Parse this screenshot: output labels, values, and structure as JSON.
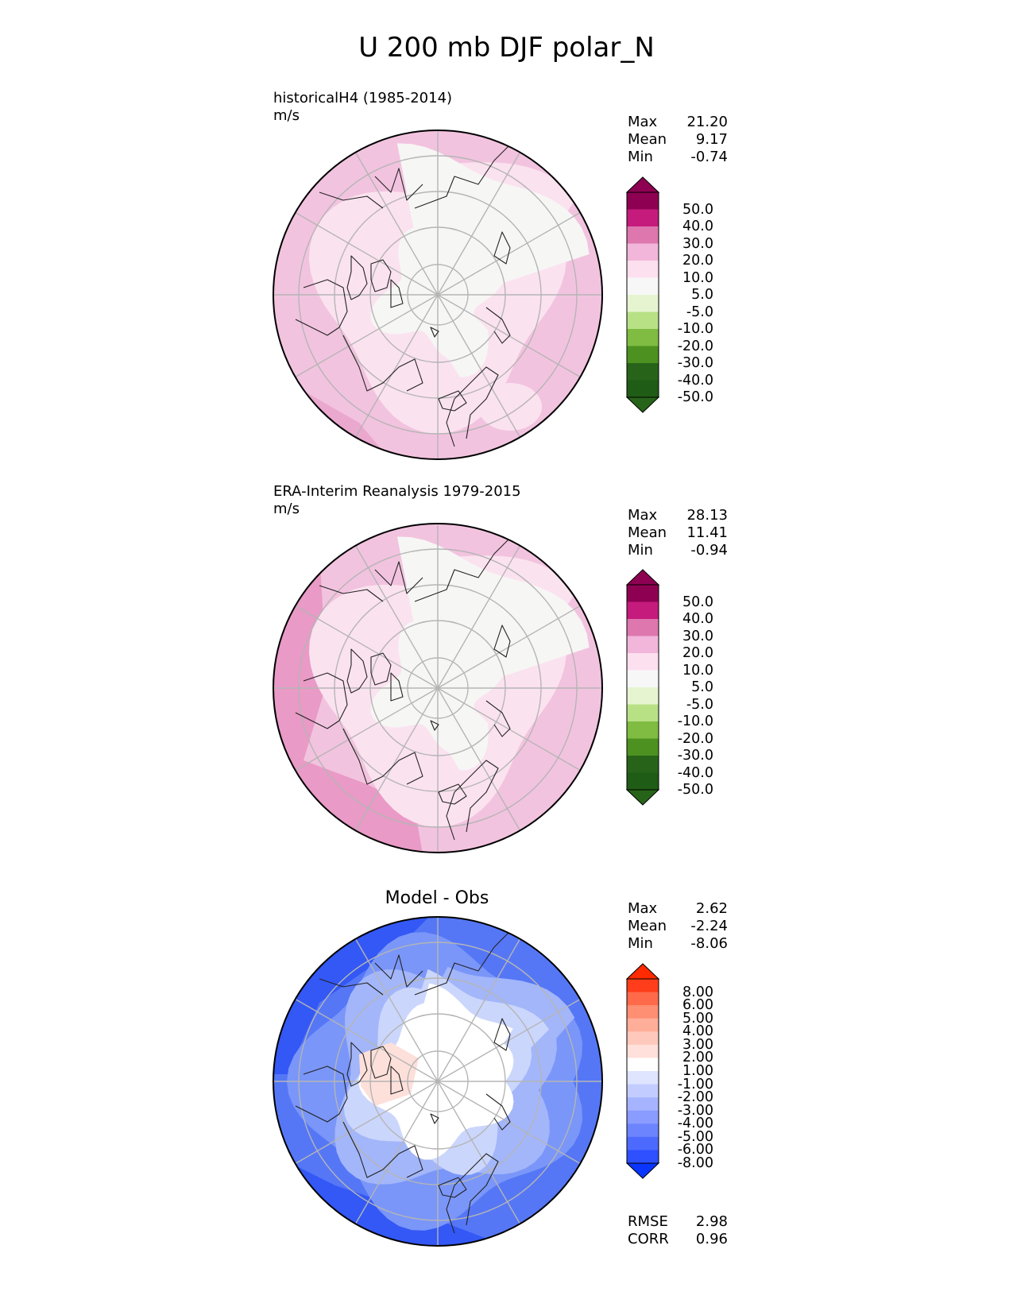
{
  "title": "U 200 mb DJF polar_N",
  "panels": [
    {
      "id": "model",
      "title": "historicalH4 (1985-2014)",
      "units": "m/s",
      "stats": [
        {
          "label": "Max",
          "value": "21.20"
        },
        {
          "label": "Mean",
          "value": "9.17"
        },
        {
          "label": "Min",
          "value": "-0.74"
        }
      ],
      "colorbar": {
        "labels": [
          "50.0",
          "40.0",
          "30.0",
          "20.0",
          "10.0",
          "5.0",
          "-5.0",
          "-10.0",
          "-20.0",
          "-30.0",
          "-40.0",
          "-50.0"
        ],
        "colors": [
          "#8e0152",
          "#c51b7d",
          "#de77ae",
          "#f1b6da",
          "#fde0ef",
          "#f7f7f7",
          "#e6f5d0",
          "#b8e186",
          "#7fbc41",
          "#4d9221",
          "#276419",
          "#1f5c15"
        ],
        "top_color": "#8e0152",
        "bottom_color": "#276419"
      }
    },
    {
      "id": "obs",
      "title": "ERA-Interim Reanalysis 1979-2015",
      "units": "m/s",
      "stats": [
        {
          "label": "Max",
          "value": "28.13"
        },
        {
          "label": "Mean",
          "value": "11.41"
        },
        {
          "label": "Min",
          "value": "-0.94"
        }
      ],
      "colorbar": {
        "labels": [
          "50.0",
          "40.0",
          "30.0",
          "20.0",
          "10.0",
          "5.0",
          "-5.0",
          "-10.0",
          "-20.0",
          "-30.0",
          "-40.0",
          "-50.0"
        ],
        "colors": [
          "#8e0152",
          "#c51b7d",
          "#de77ae",
          "#f1b6da",
          "#fde0ef",
          "#f7f7f7",
          "#e6f5d0",
          "#b8e186",
          "#7fbc41",
          "#4d9221",
          "#276419",
          "#1f5c15"
        ],
        "top_color": "#8e0152",
        "bottom_color": "#276419"
      }
    },
    {
      "id": "diff",
      "title": "Model - Obs",
      "stats": [
        {
          "label": "Max",
          "value": "2.62"
        },
        {
          "label": "Mean",
          "value": "-2.24"
        },
        {
          "label": "Min",
          "value": "-8.06"
        }
      ],
      "footer": [
        {
          "label": "RMSE",
          "value": "2.98"
        },
        {
          "label": "CORR",
          "value": "0.96"
        }
      ],
      "colorbar": {
        "labels": [
          "8.00",
          "6.00",
          "5.00",
          "4.00",
          "3.00",
          "2.00",
          "1.00",
          "-1.00",
          "-2.00",
          "-3.00",
          "-4.00",
          "-5.00",
          "-6.00",
          "-8.00"
        ],
        "colors": [
          "#ff3d1a",
          "#ff6a4a",
          "#ff8f73",
          "#ffae99",
          "#ffc8bc",
          "#ffe0da",
          "#ffffff",
          "#dfe4ff",
          "#c3ccff",
          "#a6b4ff",
          "#8a9cff",
          "#6d84ff",
          "#4d6aff",
          "#2e50ff"
        ],
        "top_color": "#ff2a00",
        "bottom_color": "#0a35ff"
      }
    }
  ]
}
